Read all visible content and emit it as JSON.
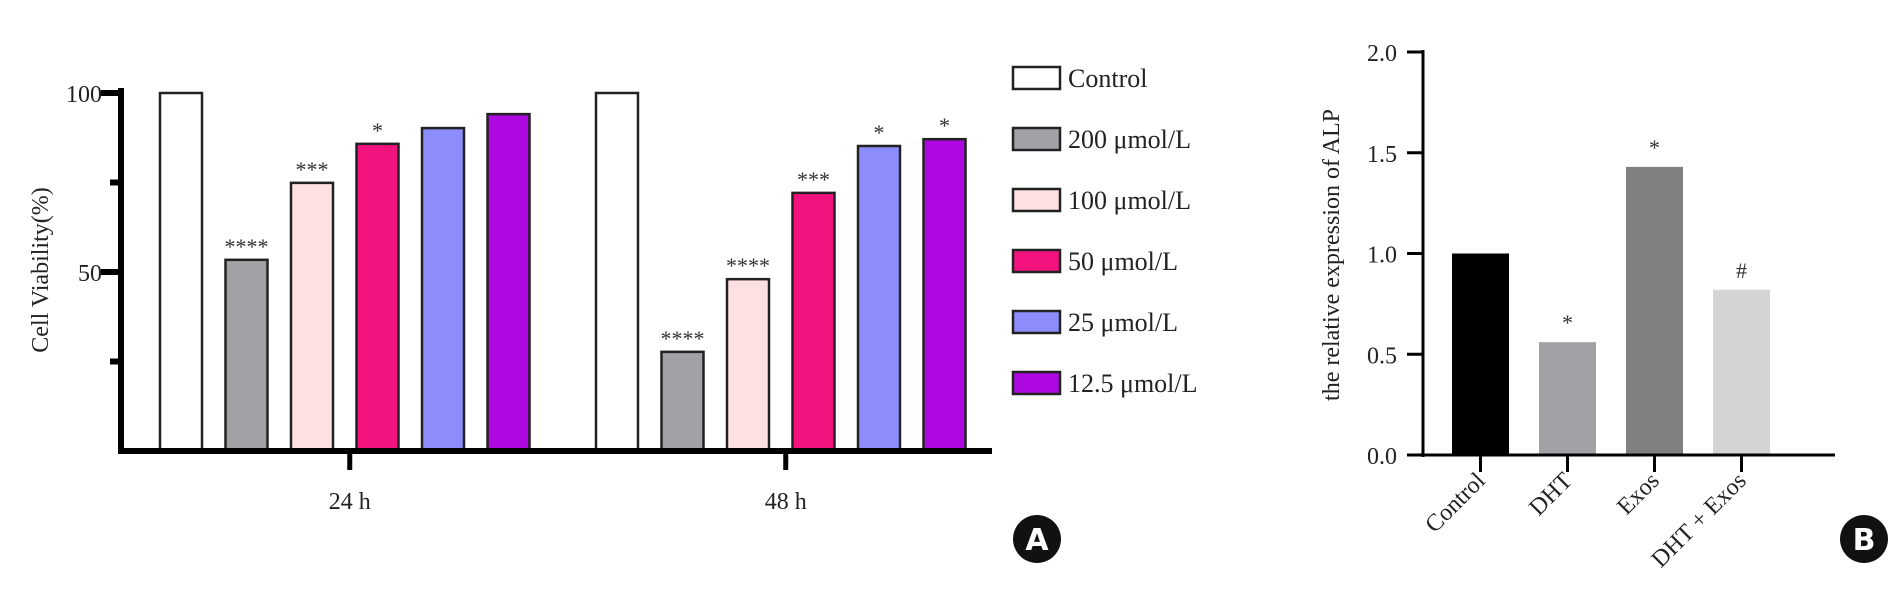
{
  "chart_data": [
    {
      "panel": "A",
      "type": "bar",
      "title": "",
      "xlabel": "",
      "ylabel": "Cell Viability(%)",
      "ylim": [
        0,
        100
      ],
      "yticks": [
        {
          "value": 0,
          "label": ""
        },
        {
          "value": 25,
          "label": ""
        },
        {
          "value": 50,
          "label": "50"
        },
        {
          "value": 75,
          "label": ""
        },
        {
          "value": 100,
          "label": "100"
        }
      ],
      "categories": [
        "24 h",
        "48 h"
      ],
      "series": [
        {
          "name": "Control",
          "color": "#ffffff",
          "values": [
            100,
            100
          ],
          "annotations": [
            "",
            ""
          ]
        },
        {
          "name": "200 μmol/L",
          "color": "#a2a1a6",
          "values": [
            53.4,
            27.7
          ],
          "annotations": [
            "****",
            "****"
          ]
        },
        {
          "name": "100 μmol/L",
          "color": "#fde0e2",
          "values": [
            74.9,
            48.0
          ],
          "annotations": [
            "***",
            "****"
          ]
        },
        {
          "name": "50 μmol/L",
          "color": "#f2137f",
          "values": [
            85.8,
            72.1
          ],
          "annotations": [
            "*",
            "***"
          ]
        },
        {
          "name": "25 μmol/L",
          "color": "#8d8cfc",
          "values": [
            90.2,
            85.2
          ],
          "annotations": [
            "",
            "*"
          ]
        },
        {
          "name": "12.5 μmol/L",
          "color": "#ad09e0",
          "values": [
            94.1,
            87.1
          ],
          "annotations": [
            "",
            "*"
          ]
        }
      ],
      "legend_position": "right",
      "grid": false
    },
    {
      "panel": "B",
      "type": "bar",
      "title": "",
      "xlabel": "",
      "ylabel": "the relative expression of ALP",
      "ylim": [
        0,
        2.0
      ],
      "yticks": [
        "0.0",
        "0.5",
        "1.0",
        "1.5",
        "2.0"
      ],
      "categories": [
        "Control",
        "DHT",
        "Exos",
        "DHT + Exos"
      ],
      "values": [
        1.0,
        0.56,
        1.43,
        0.82
      ],
      "colors": [
        "#000000",
        "#a2a1a6",
        "#808080",
        "#d4d4d4"
      ],
      "annotations": [
        "",
        "*",
        "*",
        "#"
      ],
      "grid": false
    }
  ],
  "panel_labels": {
    "a": "A",
    "b": "B"
  }
}
